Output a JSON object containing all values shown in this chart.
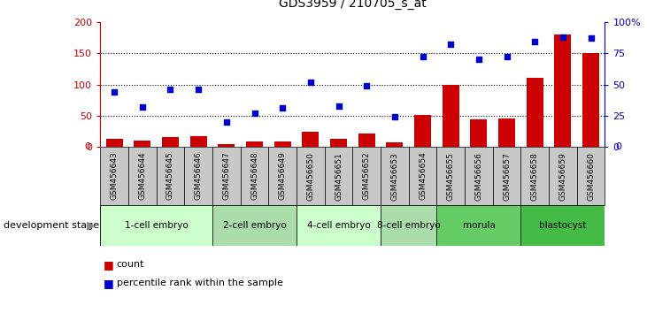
{
  "title": "GDS3959 / 210705_s_at",
  "samples": [
    "GSM456643",
    "GSM456644",
    "GSM456645",
    "GSM456646",
    "GSM456647",
    "GSM456648",
    "GSM456649",
    "GSM456650",
    "GSM456651",
    "GSM456652",
    "GSM456653",
    "GSM456654",
    "GSM456655",
    "GSM456656",
    "GSM456657",
    "GSM456658",
    "GSM456659",
    "GSM456660"
  ],
  "count_values": [
    13,
    10,
    16,
    17,
    5,
    9,
    9,
    24,
    13,
    22,
    8,
    52,
    100,
    45,
    46,
    110,
    180,
    150
  ],
  "percentile_values": [
    44,
    32,
    46,
    46,
    20,
    27,
    31,
    52,
    33,
    49,
    24,
    72,
    82,
    70,
    72,
    84,
    88,
    87
  ],
  "bar_color": "#cc0000",
  "dot_color": "#0000cc",
  "ylim_left": [
    0,
    200
  ],
  "ylim_right": [
    0,
    100
  ],
  "yticks_left": [
    0,
    50,
    100,
    150,
    200
  ],
  "yticks_right": [
    0,
    25,
    50,
    75,
    100
  ],
  "yticklabels_right": [
    "0",
    "25",
    "50",
    "75",
    "100%"
  ],
  "stages": [
    {
      "label": "1-cell embryo",
      "start": 0,
      "end": 4,
      "color": "#ccffcc"
    },
    {
      "label": "2-cell embryo",
      "start": 4,
      "end": 7,
      "color": "#aaddaa"
    },
    {
      "label": "4-cell embryo",
      "start": 7,
      "end": 10,
      "color": "#ccffcc"
    },
    {
      "label": "8-cell embryo",
      "start": 10,
      "end": 12,
      "color": "#aaddaa"
    },
    {
      "label": "morula",
      "start": 12,
      "end": 15,
      "color": "#66cc66"
    },
    {
      "label": "blastocyst",
      "start": 15,
      "end": 18,
      "color": "#44bb44"
    }
  ],
  "xlabel": "development stage",
  "legend_count_label": "count",
  "legend_pct_label": "percentile rank within the sample",
  "tick_bg_color": "#c8c8c8",
  "dotted_line_color": "#000000"
}
